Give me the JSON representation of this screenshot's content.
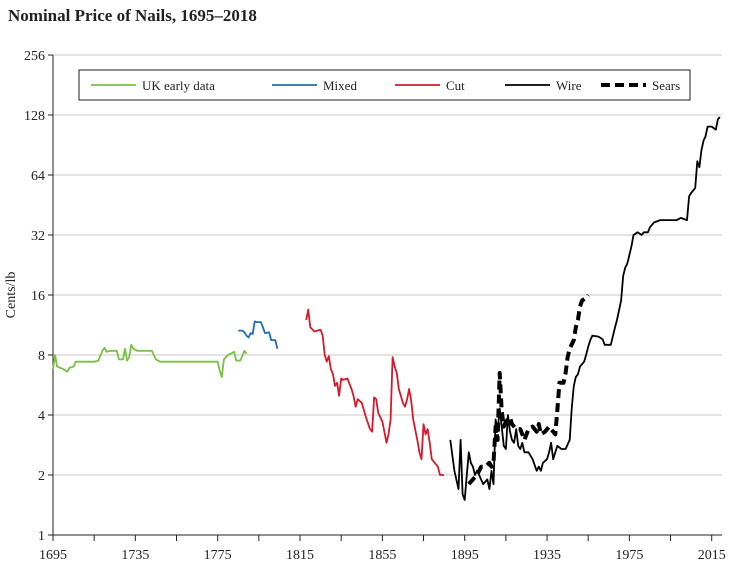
{
  "chart_data": {
    "type": "line",
    "title": "Nominal Price of Nails, 1695–2018",
    "ylabel": "Cents/lb",
    "xlabel": "",
    "xlim": [
      1695,
      2020
    ],
    "ylim": [
      1,
      256
    ],
    "yscale": "log2",
    "x_ticks": [
      1695,
      1735,
      1775,
      1815,
      1855,
      1895,
      1935,
      1975,
      2015
    ],
    "y_ticks": [
      {
        "value": 1,
        "label": "1"
      },
      {
        "value": 2,
        "label": "2"
      },
      {
        "value": 4,
        "label": "4"
      },
      {
        "value": 8,
        "label": "8"
      },
      {
        "value": 16,
        "label": "16"
      },
      {
        "value": 32,
        "label": "32"
      },
      {
        "value": 64,
        "label": "64"
      },
      {
        "value": 128,
        "label": "128"
      },
      {
        "value": 256,
        "label": "256"
      }
    ],
    "grid": "horizontal",
    "legend_position": "top",
    "series": [
      {
        "name": "UK early data",
        "color": "#7ac143",
        "dash": "solid",
        "points": [
          [
            1695,
            6.8
          ],
          [
            1696,
            8.0
          ],
          [
            1697,
            7.0
          ],
          [
            1700,
            6.8
          ],
          [
            1702,
            6.6
          ],
          [
            1703,
            6.9
          ],
          [
            1705,
            7.0
          ],
          [
            1706,
            7.4
          ],
          [
            1710,
            7.4
          ],
          [
            1715,
            7.4
          ],
          [
            1717,
            7.5
          ],
          [
            1719,
            8.4
          ],
          [
            1720,
            8.7
          ],
          [
            1721,
            8.3
          ],
          [
            1723,
            8.4
          ],
          [
            1726,
            8.4
          ],
          [
            1727,
            7.6
          ],
          [
            1729,
            7.6
          ],
          [
            1730,
            8.6
          ],
          [
            1731,
            7.5
          ],
          [
            1732,
            7.8
          ],
          [
            1733,
            9.0
          ],
          [
            1734,
            8.6
          ],
          [
            1736,
            8.4
          ],
          [
            1738,
            8.4
          ],
          [
            1741,
            8.4
          ],
          [
            1743,
            8.4
          ],
          [
            1745,
            7.6
          ],
          [
            1747,
            7.4
          ],
          [
            1752,
            7.4
          ],
          [
            1757,
            7.4
          ],
          [
            1762,
            7.4
          ],
          [
            1767,
            7.4
          ],
          [
            1772,
            7.4
          ],
          [
            1775,
            7.4
          ],
          [
            1776,
            6.7
          ],
          [
            1777,
            6.2
          ],
          [
            1778,
            7.6
          ],
          [
            1780,
            8.0
          ],
          [
            1782,
            8.2
          ],
          [
            1783,
            8.3
          ],
          [
            1784,
            7.5
          ],
          [
            1786,
            7.5
          ],
          [
            1788,
            8.4
          ],
          [
            1789,
            8.1
          ]
        ]
      },
      {
        "name": "Mixed",
        "color": "#1f6fb2",
        "dash": "solid",
        "points": [
          [
            1785,
            10.6
          ],
          [
            1787,
            10.6
          ],
          [
            1788,
            10.4
          ],
          [
            1789,
            10.0
          ],
          [
            1790,
            9.8
          ],
          [
            1791,
            10.3
          ],
          [
            1792,
            10.2
          ],
          [
            1793,
            11.8
          ],
          [
            1794,
            11.7
          ],
          [
            1796,
            11.7
          ],
          [
            1797,
            11.0
          ],
          [
            1798,
            10.3
          ],
          [
            1800,
            10.4
          ],
          [
            1801,
            9.5
          ],
          [
            1803,
            9.5
          ],
          [
            1804,
            8.6
          ]
        ]
      },
      {
        "name": "Cut",
        "color": "#d7192c",
        "dash": "solid",
        "points": [
          [
            1818,
            12.0
          ],
          [
            1819,
            13.5
          ],
          [
            1820,
            11.0
          ],
          [
            1822,
            10.5
          ],
          [
            1825,
            10.7
          ],
          [
            1826,
            10.0
          ],
          [
            1827,
            8.0
          ],
          [
            1828,
            7.4
          ],
          [
            1829,
            7.9
          ],
          [
            1830,
            6.8
          ],
          [
            1831,
            6.4
          ],
          [
            1832,
            5.6
          ],
          [
            1833,
            5.8
          ],
          [
            1834,
            5.0
          ],
          [
            1835,
            6.1
          ],
          [
            1836,
            6.0
          ],
          [
            1838,
            6.1
          ],
          [
            1840,
            5.4
          ],
          [
            1841,
            5.0
          ],
          [
            1842,
            4.4
          ],
          [
            1843,
            4.8
          ],
          [
            1845,
            4.6
          ],
          [
            1847,
            3.9
          ],
          [
            1849,
            3.4
          ],
          [
            1850,
            3.3
          ],
          [
            1851,
            4.9
          ],
          [
            1852,
            4.8
          ],
          [
            1853,
            4.1
          ],
          [
            1855,
            3.7
          ],
          [
            1856,
            3.3
          ],
          [
            1857,
            2.9
          ],
          [
            1858,
            3.2
          ],
          [
            1859,
            3.8
          ],
          [
            1860,
            7.8
          ],
          [
            1861,
            7.0
          ],
          [
            1862,
            6.5
          ],
          [
            1863,
            5.4
          ],
          [
            1865,
            4.6
          ],
          [
            1866,
            4.4
          ],
          [
            1867,
            4.8
          ],
          [
            1868,
            5.4
          ],
          [
            1869,
            4.7
          ],
          [
            1870,
            3.8
          ],
          [
            1872,
            3.0
          ],
          [
            1873,
            2.6
          ],
          [
            1874,
            2.4
          ],
          [
            1875,
            3.6
          ],
          [
            1876,
            3.2
          ],
          [
            1877,
            3.4
          ],
          [
            1878,
            2.9
          ],
          [
            1879,
            2.4
          ],
          [
            1882,
            2.2
          ],
          [
            1883,
            2.0
          ],
          [
            1885,
            2.0
          ]
        ]
      },
      {
        "name": "Wire",
        "color": "#000000",
        "dash": "solid",
        "points": [
          [
            1888,
            3.0
          ],
          [
            1890,
            2.1
          ],
          [
            1892,
            1.7
          ],
          [
            1893,
            3.0
          ],
          [
            1894,
            1.6
          ],
          [
            1895,
            1.5
          ],
          [
            1896,
            2.0
          ],
          [
            1897,
            2.6
          ],
          [
            1898,
            2.3
          ],
          [
            1899,
            2.2
          ],
          [
            1900,
            2.0
          ],
          [
            1901,
            2.1
          ],
          [
            1902,
            2.0
          ],
          [
            1904,
            1.8
          ],
          [
            1906,
            1.9
          ],
          [
            1907,
            1.7
          ],
          [
            1908,
            2.1
          ],
          [
            1909,
            1.8
          ],
          [
            1910,
            3.8
          ],
          [
            1911,
            3.3
          ],
          [
            1912,
            4.3
          ],
          [
            1913,
            3.5
          ],
          [
            1914,
            2.8
          ],
          [
            1915,
            2.7
          ],
          [
            1916,
            4.0
          ],
          [
            1917,
            3.3
          ],
          [
            1918,
            3.0
          ],
          [
            1919,
            2.9
          ],
          [
            1920,
            3.4
          ],
          [
            1921,
            2.8
          ],
          [
            1922,
            2.7
          ],
          [
            1923,
            2.9
          ],
          [
            1924,
            2.6
          ],
          [
            1926,
            2.6
          ],
          [
            1928,
            2.4
          ],
          [
            1930,
            2.1
          ],
          [
            1931,
            2.2
          ],
          [
            1932,
            2.1
          ],
          [
            1933,
            2.3
          ],
          [
            1935,
            2.4
          ],
          [
            1936,
            2.6
          ],
          [
            1937,
            2.9
          ],
          [
            1938,
            2.4
          ],
          [
            1939,
            2.6
          ],
          [
            1940,
            2.8
          ],
          [
            1942,
            2.7
          ],
          [
            1944,
            2.7
          ],
          [
            1946,
            3.0
          ],
          [
            1947,
            4.3
          ],
          [
            1948,
            5.6
          ],
          [
            1949,
            6.2
          ],
          [
            1950,
            6.4
          ],
          [
            1951,
            7.0
          ],
          [
            1953,
            7.4
          ],
          [
            1954,
            8.0
          ],
          [
            1955,
            8.8
          ],
          [
            1956,
            9.5
          ],
          [
            1957,
            10.0
          ],
          [
            1960,
            9.9
          ],
          [
            1962,
            9.6
          ],
          [
            1963,
            9.0
          ],
          [
            1966,
            9.0
          ],
          [
            1968,
            11.0
          ],
          [
            1969,
            12.0
          ],
          [
            1971,
            15.0
          ],
          [
            1972,
            20.0
          ],
          [
            1973,
            22.0
          ],
          [
            1974,
            23.0
          ],
          [
            1976,
            28.0
          ],
          [
            1977,
            32.0
          ],
          [
            1979,
            33.0
          ],
          [
            1981,
            32.0
          ],
          [
            1982,
            33.0
          ],
          [
            1984,
            33.0
          ],
          [
            1985,
            35.0
          ],
          [
            1987,
            37.0
          ],
          [
            1990,
            38.0
          ],
          [
            1994,
            38.0
          ],
          [
            1998,
            38.0
          ],
          [
            2000,
            39.0
          ],
          [
            2003,
            38.0
          ],
          [
            2004,
            50.0
          ],
          [
            2005,
            52.0
          ],
          [
            2007,
            55.0
          ],
          [
            2008,
            75.0
          ],
          [
            2009,
            70.0
          ],
          [
            2010,
            85.0
          ],
          [
            2011,
            95.0
          ],
          [
            2012,
            100.0
          ],
          [
            2013,
            112.0
          ],
          [
            2015,
            112.0
          ],
          [
            2017,
            108.0
          ],
          [
            2018,
            122.0
          ],
          [
            2019,
            125.0
          ]
        ]
      },
      {
        "name": "Sears",
        "color": "#000000",
        "dash": "dashed",
        "points": [
          [
            1897,
            1.8
          ],
          [
            1899,
            1.9
          ],
          [
            1901,
            2.0
          ],
          [
            1903,
            2.2
          ],
          [
            1905,
            2.2
          ],
          [
            1907,
            2.3
          ],
          [
            1908,
            2.2
          ],
          [
            1909,
            2.3
          ],
          [
            1910,
            3.5
          ],
          [
            1911,
            3.0
          ],
          [
            1912,
            6.5
          ],
          [
            1913,
            4.2
          ],
          [
            1914,
            3.5
          ],
          [
            1915,
            3.7
          ],
          [
            1916,
            3.8
          ],
          [
            1917,
            3.9
          ],
          [
            1918,
            3.6
          ],
          [
            1920,
            3.4
          ],
          [
            1922,
            3.4
          ],
          [
            1923,
            3.2
          ],
          [
            1924,
            3.0
          ],
          [
            1926,
            3.4
          ],
          [
            1928,
            3.5
          ],
          [
            1930,
            3.3
          ],
          [
            1931,
            3.6
          ],
          [
            1932,
            3.2
          ],
          [
            1934,
            3.3
          ],
          [
            1936,
            3.5
          ],
          [
            1937,
            3.4
          ],
          [
            1939,
            3.2
          ],
          [
            1940,
            4.2
          ],
          [
            1941,
            5.8
          ],
          [
            1943,
            5.8
          ],
          [
            1944,
            6.5
          ],
          [
            1945,
            7.8
          ],
          [
            1946,
            8.6
          ],
          [
            1948,
            9.5
          ],
          [
            1949,
            11.0
          ],
          [
            1950,
            12.0
          ],
          [
            1951,
            14.0
          ],
          [
            1952,
            15.0
          ],
          [
            1954,
            15.5
          ],
          [
            1955,
            16.0
          ]
        ]
      }
    ]
  }
}
